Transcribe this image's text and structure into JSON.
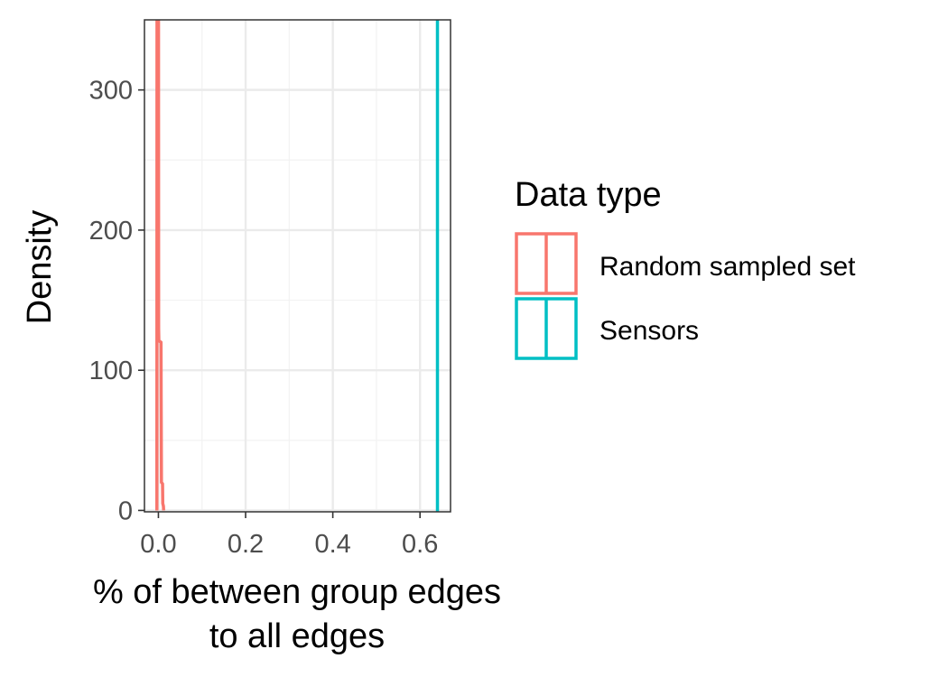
{
  "chart_data": {
    "type": "density",
    "title": "",
    "xlabel_lines": [
      "% of between group edges",
      "to all edges"
    ],
    "ylabel": "Density",
    "xlim": [
      -0.032,
      0.67
    ],
    "ylim": [
      -1,
      350
    ],
    "x_ticks": [
      0.0,
      0.2,
      0.4,
      0.6
    ],
    "x_tick_labels": [
      "0.0",
      "0.2",
      "0.4",
      "0.6"
    ],
    "y_ticks": [
      0,
      100,
      200,
      300
    ],
    "y_tick_labels": [
      "0",
      "100",
      "200",
      "300"
    ],
    "grid": true,
    "legend": {
      "title": "Data type",
      "position": "right"
    },
    "series": [
      {
        "name": "Random sampled set",
        "color": "#F8766D",
        "points": [
          [
            -0.0035,
            0
          ],
          [
            -0.0032,
            380
          ],
          [
            0.0002,
            380
          ],
          [
            0.0005,
            130
          ],
          [
            0.001,
            121
          ],
          [
            0.006,
            120
          ],
          [
            0.0063,
            80
          ],
          [
            0.007,
            20
          ],
          [
            0.0095,
            19
          ],
          [
            0.01,
            5
          ],
          [
            0.0115,
            3
          ],
          [
            0.012,
            0
          ]
        ]
      },
      {
        "name": "Sensors",
        "color": "#00BFC4",
        "vline_x": 0.64
      }
    ]
  }
}
